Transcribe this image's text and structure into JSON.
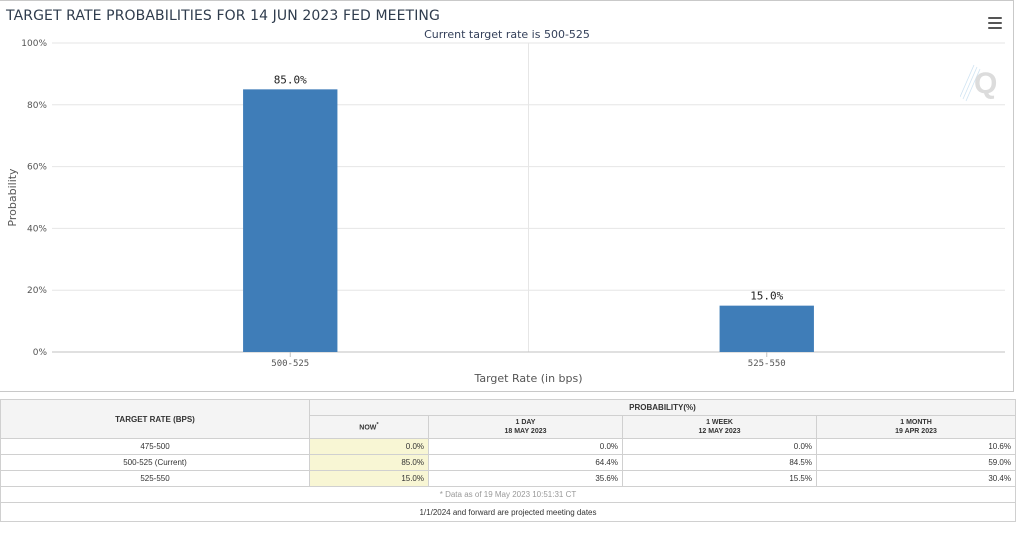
{
  "chart_title": "TARGET RATE PROBABILITIES FOR 14 JUN 2023 FED MEETING",
  "chart_subtitle": "Current target rate is 500-525",
  "chart_data": {
    "type": "bar",
    "title": "TARGET RATE PROBABILITIES FOR 14 JUN 2023 FED MEETING",
    "subtitle": "Current target rate is 500-525",
    "categories": [
      "500-525",
      "525-550"
    ],
    "values": [
      85.0,
      15.0
    ],
    "value_labels": [
      "85.0%",
      "15.0%"
    ],
    "xlabel": "Target Rate (in bps)",
    "ylabel": "Probability",
    "ylim": [
      0,
      100
    ],
    "yticks": [
      "0%",
      "20%",
      "40%",
      "60%",
      "80%",
      "100%"
    ],
    "grid": true,
    "bar_color": "#3f7db8"
  },
  "table": {
    "header_rate": "TARGET RATE (BPS)",
    "header_probability": "PROBABILITY(%)",
    "columns": [
      {
        "line1": "NOW",
        "line2": "",
        "marker": "*"
      },
      {
        "line1": "1 DAY",
        "line2": "18 MAY 2023"
      },
      {
        "line1": "1 WEEK",
        "line2": "12 MAY 2023"
      },
      {
        "line1": "1 MONTH",
        "line2": "19 APR 2023"
      }
    ],
    "rows": [
      {
        "rate": "475-500",
        "now": "0.0%",
        "day": "0.0%",
        "week": "0.0%",
        "month": "10.6%"
      },
      {
        "rate": "500-525 (Current)",
        "now": "85.0%",
        "day": "64.4%",
        "week": "84.5%",
        "month": "59.0%"
      },
      {
        "rate": "525-550",
        "now": "15.0%",
        "day": "35.6%",
        "week": "15.5%",
        "month": "30.4%"
      }
    ],
    "data_note": "* Data as of 19 May 2023 10:51:31 CT",
    "footer_note": "1/1/2024 and forward are projected meeting dates"
  },
  "icons": {
    "menu": "hamburger-menu-icon",
    "watermark": "q-logo-watermark"
  }
}
